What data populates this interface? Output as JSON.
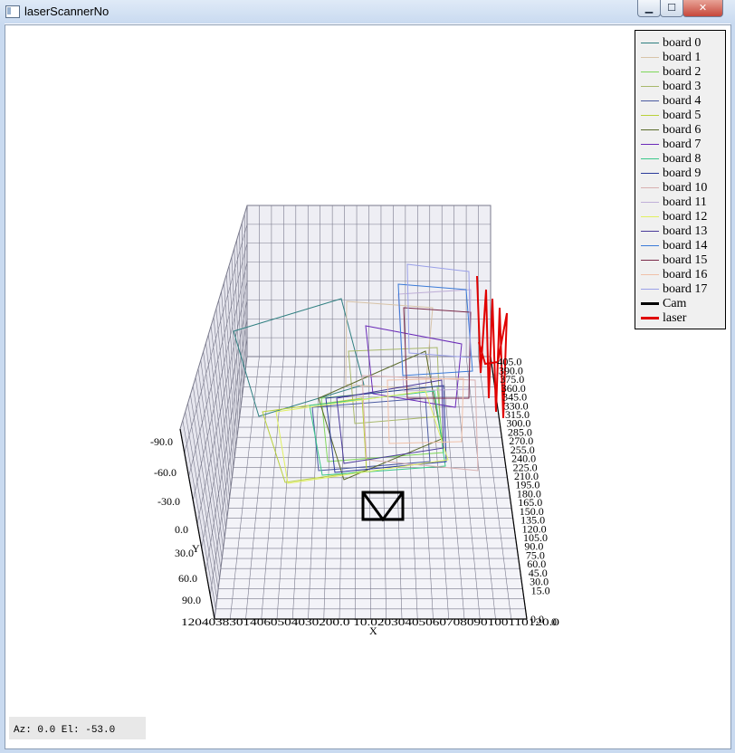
{
  "window": {
    "title": "laserScannerNo",
    "minimize": "▁",
    "maximize": "☐",
    "close": "✕"
  },
  "plot": {
    "x_label": "X",
    "y_label": "Y",
    "y_ticks": [
      "-90.0",
      "-60.0",
      "-30.0",
      "0.0",
      "30.0",
      "60.0",
      "90.0"
    ],
    "x_ticks_text": "12040383014060504030200.0 10.02030405060708090100110120.0",
    "z_ticks": [
      "15.0",
      "30.0",
      "45.0",
      "60.0",
      "75.0",
      "90.0",
      "105.0",
      "120.0",
      "135.0",
      "150.0",
      "165.0",
      "180.0",
      "195.0",
      "210.0",
      "225.0",
      "240.0",
      "255.0",
      "270.0",
      "285.0",
      "300.0",
      "315.0",
      "330.0",
      "345.0",
      "360.0",
      "375.0",
      "390.0",
      "405.0"
    ],
    "z_zero": "0.0",
    "z_corner": "0"
  },
  "legend": {
    "items": [
      {
        "label": "board 0",
        "color": "#2f7f80"
      },
      {
        "label": "board 1",
        "color": "#d8c4a8"
      },
      {
        "label": "board 2",
        "color": "#7fd85a"
      },
      {
        "label": "board 3",
        "color": "#a8b86a"
      },
      {
        "label": "board 4",
        "color": "#4a5aa0"
      },
      {
        "label": "board 5",
        "color": "#b8d03a"
      },
      {
        "label": "board 6",
        "color": "#5a6a2a"
      },
      {
        "label": "board 7",
        "color": "#6a2ab8"
      },
      {
        "label": "board 8",
        "color": "#3ac88a"
      },
      {
        "label": "board 9",
        "color": "#2a3a9a"
      },
      {
        "label": "board 10",
        "color": "#d8b0b0"
      },
      {
        "label": "board 11",
        "color": "#c0b0d8"
      },
      {
        "label": "board 12",
        "color": "#e0f060"
      },
      {
        "label": "board 13",
        "color": "#4a3a9a"
      },
      {
        "label": "board 14",
        "color": "#3a7ad8"
      },
      {
        "label": "board 15",
        "color": "#7a2a4a"
      },
      {
        "label": "board 16",
        "color": "#f0c0a8"
      },
      {
        "label": "board 17",
        "color": "#9aa0e8"
      },
      {
        "label": "Cam",
        "color": "#000000"
      },
      {
        "label": "laser",
        "color": "#e00000"
      }
    ]
  },
  "status": {
    "text": "Az: 0.0 El: -53.0"
  }
}
